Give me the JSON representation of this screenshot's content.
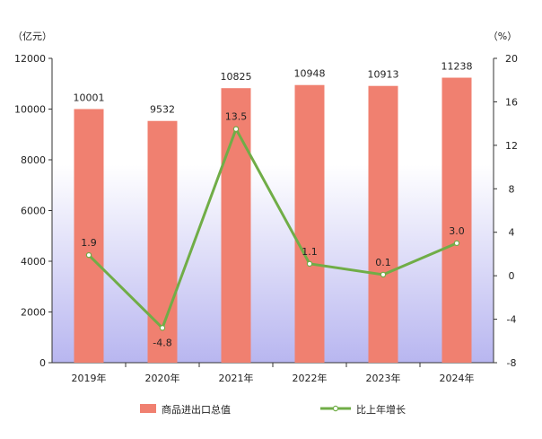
{
  "chart_data": {
    "type": "bar",
    "categories": [
      "2019年",
      "2020年",
      "2021年",
      "2022年",
      "2023年",
      "2024年"
    ],
    "series": [
      {
        "name": "商品进出口总值",
        "type": "bar",
        "axis": "left",
        "values": [
          10001,
          9532,
          10825,
          10948,
          10913,
          11238
        ],
        "labels": [
          "10001",
          "9532",
          "10825",
          "10948",
          "10913",
          "11238"
        ],
        "color": "#f08070"
      },
      {
        "name": "比上年增长",
        "type": "line",
        "axis": "right",
        "values": [
          1.9,
          -4.8,
          13.5,
          1.1,
          0.1,
          3.0
        ],
        "labels": [
          "1.9",
          "-4.8",
          "13.5",
          "1.1",
          "0.1",
          "3.0"
        ],
        "color": "#70ad47"
      }
    ],
    "left_axis": {
      "unit": "（亿元）",
      "min": 0,
      "max": 12000,
      "ticks": [
        "0",
        "2000",
        "4000",
        "6000",
        "8000",
        "10000",
        "12000"
      ]
    },
    "right_axis": {
      "unit": "（%）",
      "min": -8,
      "max": 20,
      "ticks": [
        "-8",
        "-4",
        "0",
        "4",
        "8",
        "12",
        "16",
        "20"
      ]
    },
    "background": {
      "top": "#ffffff",
      "bottom": "#b8b6f0"
    },
    "grid": false,
    "legend_position": "bottom"
  }
}
